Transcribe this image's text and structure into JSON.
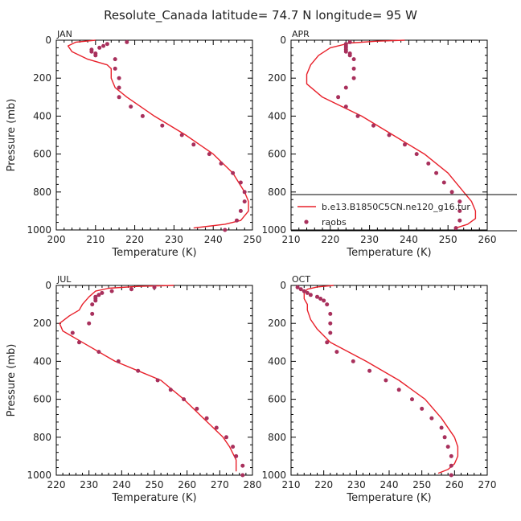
{
  "figure": {
    "title": "Resolute_Canada   latitude= 74.7 N longitude= 95 W"
  },
  "legend": {
    "model_label": "b.e13.B1850C5CN.ne120_g16.tur",
    "obs_label": "raobs"
  },
  "colors": {
    "model_line": "#e8202a",
    "obs_marker": "#a8305c",
    "frame": "#000000",
    "text": "#222222"
  },
  "chart_data": [
    {
      "type": "line",
      "panel": "JAN",
      "xlabel": "Temperature (K)",
      "ylabel": "Pressure (mb)",
      "xlim": [
        200,
        250
      ],
      "ylim": [
        1000,
        0
      ],
      "xticks": [
        200,
        210,
        220,
        230,
        240,
        250
      ],
      "yticks": [
        0,
        200,
        400,
        600,
        800,
        1000
      ],
      "series": [
        {
          "name": "b.e13.B1850C5CN.ne120_g16.tur",
          "kind": "line",
          "points": [
            [
              210,
              0
            ],
            [
              205,
              10
            ],
            [
              203,
              30
            ],
            [
              204,
              60
            ],
            [
              208,
              100
            ],
            [
              213,
              130
            ],
            [
              214,
              150
            ],
            [
              214,
              170
            ],
            [
              214,
              200
            ],
            [
              215,
              250
            ],
            [
              218,
              300
            ],
            [
              225,
              400
            ],
            [
              233,
              500
            ],
            [
              240,
              600
            ],
            [
              245,
              700
            ],
            [
              248,
              800
            ],
            [
              249,
              850
            ],
            [
              249,
              900
            ],
            [
              247,
              950
            ],
            [
              243,
              970
            ],
            [
              235,
              990
            ]
          ]
        },
        {
          "name": "raobs",
          "kind": "points",
          "points": [
            [
              218,
              10
            ],
            [
              213,
              20
            ],
            [
              212,
              30
            ],
            [
              211,
              40
            ],
            [
              209,
              50
            ],
            [
              209,
              60
            ],
            [
              210,
              70
            ],
            [
              210,
              80
            ],
            [
              215,
              100
            ],
            [
              215,
              150
            ],
            [
              216,
              200
            ],
            [
              216,
              250
            ],
            [
              216,
              300
            ],
            [
              219,
              350
            ],
            [
              222,
              400
            ],
            [
              227,
              450
            ],
            [
              232,
              500
            ],
            [
              235,
              550
            ],
            [
              239,
              600
            ],
            [
              242,
              650
            ],
            [
              245,
              700
            ],
            [
              247,
              750
            ],
            [
              248,
              800
            ],
            [
              248,
              850
            ],
            [
              247,
              900
            ],
            [
              246,
              950
            ],
            [
              243,
              1000
            ]
          ]
        }
      ]
    },
    {
      "type": "line",
      "panel": "APR",
      "xlabel": "Temperature (K)",
      "ylabel": "",
      "xlim": [
        210,
        260
      ],
      "ylim": [
        1000,
        0
      ],
      "xticks": [
        210,
        220,
        230,
        240,
        250,
        260
      ],
      "yticks": [
        0,
        200,
        400,
        600,
        800,
        1000
      ],
      "series": [
        {
          "name": "b.e13.B1850C5CN.ne120_g16.tur",
          "kind": "line",
          "points": [
            [
              239,
              0
            ],
            [
              232,
              5
            ],
            [
              225,
              15
            ],
            [
              220,
              40
            ],
            [
              217,
              80
            ],
            [
              215,
              130
            ],
            [
              214,
              180
            ],
            [
              214,
              230
            ],
            [
              218,
              300
            ],
            [
              228,
              400
            ],
            [
              236,
              500
            ],
            [
              244,
              600
            ],
            [
              250,
              700
            ],
            [
              254,
              800
            ],
            [
              256,
              850
            ],
            [
              257,
              900
            ],
            [
              257,
              940
            ],
            [
              255,
              970
            ],
            [
              252,
              990
            ]
          ]
        },
        {
          "name": "raobs",
          "kind": "points",
          "points": [
            [
              225,
              10
            ],
            [
              224,
              20
            ],
            [
              224,
              30
            ],
            [
              224,
              40
            ],
            [
              224,
              50
            ],
            [
              224,
              60
            ],
            [
              225,
              70
            ],
            [
              225,
              80
            ],
            [
              226,
              100
            ],
            [
              226,
              150
            ],
            [
              226,
              200
            ],
            [
              224,
              250
            ],
            [
              222,
              300
            ],
            [
              224,
              350
            ],
            [
              227,
              400
            ],
            [
              231,
              450
            ],
            [
              235,
              500
            ],
            [
              239,
              550
            ],
            [
              242,
              600
            ],
            [
              245,
              650
            ],
            [
              247,
              700
            ],
            [
              249,
              750
            ],
            [
              251,
              800
            ],
            [
              253,
              850
            ],
            [
              253,
              900
            ],
            [
              253,
              950
            ],
            [
              252,
              990
            ]
          ]
        }
      ]
    },
    {
      "type": "line",
      "panel": "JUL",
      "xlabel": "Temperature (K)",
      "ylabel": "Pressure (mb)",
      "xlim": [
        220,
        280
      ],
      "ylim": [
        1000,
        0
      ],
      "xticks": [
        220,
        230,
        240,
        250,
        260,
        270,
        280
      ],
      "yticks": [
        0,
        200,
        400,
        600,
        800,
        1000
      ],
      "series": [
        {
          "name": "b.e13.B1850C5CN.ne120_g16.tur",
          "kind": "line",
          "points": [
            [
              256,
              0
            ],
            [
              245,
              5
            ],
            [
              236,
              15
            ],
            [
              232,
              30
            ],
            [
              230,
              60
            ],
            [
              228,
              100
            ],
            [
              227,
              130
            ],
            [
              224,
              160
            ],
            [
              221,
              200
            ],
            [
              222,
              240
            ],
            [
              228,
              300
            ],
            [
              238,
              400
            ],
            [
              245,
              450
            ],
            [
              252,
              500
            ],
            [
              259,
              600
            ],
            [
              265,
              700
            ],
            [
              271,
              800
            ],
            [
              273,
              850
            ],
            [
              275,
              920
            ],
            [
              275,
              980
            ]
          ]
        },
        {
          "name": "raobs",
          "kind": "points",
          "points": [
            [
              250,
              10
            ],
            [
              243,
              20
            ],
            [
              237,
              30
            ],
            [
              234,
              40
            ],
            [
              233,
              50
            ],
            [
              232,
              60
            ],
            [
              232,
              70
            ],
            [
              232,
              80
            ],
            [
              231,
              100
            ],
            [
              231,
              150
            ],
            [
              230,
              200
            ],
            [
              225,
              250
            ],
            [
              227,
              300
            ],
            [
              233,
              350
            ],
            [
              239,
              400
            ],
            [
              245,
              450
            ],
            [
              251,
              500
            ],
            [
              255,
              550
            ],
            [
              259,
              600
            ],
            [
              263,
              650
            ],
            [
              266,
              700
            ],
            [
              269,
              750
            ],
            [
              272,
              800
            ],
            [
              274,
              850
            ],
            [
              275,
              900
            ],
            [
              277,
              950
            ],
            [
              277,
              1000
            ]
          ]
        }
      ]
    },
    {
      "type": "line",
      "panel": "OCT",
      "xlabel": "Temperature (K)",
      "ylabel": "",
      "xlim": [
        210,
        270
      ],
      "ylim": [
        1000,
        0
      ],
      "xticks": [
        210,
        220,
        230,
        240,
        250,
        260,
        270
      ],
      "yticks": [
        0,
        200,
        400,
        600,
        800,
        1000
      ],
      "series": [
        {
          "name": "b.e13.B1850C5CN.ne120_g16.tur",
          "kind": "line",
          "points": [
            [
              223,
              0
            ],
            [
              218,
              8
            ],
            [
              215,
              20
            ],
            [
              214,
              40
            ],
            [
              214,
              70
            ],
            [
              215,
              100
            ],
            [
              215,
              130
            ],
            [
              216,
              180
            ],
            [
              218,
              230
            ],
            [
              222,
              300
            ],
            [
              233,
              400
            ],
            [
              243,
              500
            ],
            [
              251,
              600
            ],
            [
              256,
              700
            ],
            [
              260,
              800
            ],
            [
              261,
              850
            ],
            [
              261,
              900
            ],
            [
              260,
              940
            ],
            [
              258,
              970
            ],
            [
              255,
              990
            ]
          ]
        },
        {
          "name": "raobs",
          "kind": "points",
          "points": [
            [
              212,
              10
            ],
            [
              213,
              20
            ],
            [
              214,
              30
            ],
            [
              215,
              40
            ],
            [
              216,
              50
            ],
            [
              218,
              60
            ],
            [
              219,
              70
            ],
            [
              220,
              80
            ],
            [
              221,
              100
            ],
            [
              222,
              150
            ],
            [
              222,
              200
            ],
            [
              222,
              250
            ],
            [
              221,
              300
            ],
            [
              224,
              350
            ],
            [
              229,
              400
            ],
            [
              234,
              450
            ],
            [
              239,
              500
            ],
            [
              243,
              550
            ],
            [
              247,
              600
            ],
            [
              250,
              650
            ],
            [
              253,
              700
            ],
            [
              256,
              750
            ],
            [
              257,
              800
            ],
            [
              258,
              850
            ],
            [
              259,
              900
            ],
            [
              259,
              950
            ],
            [
              259,
              1000
            ]
          ]
        }
      ]
    }
  ]
}
